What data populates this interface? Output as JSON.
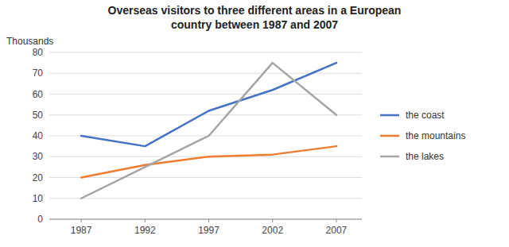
{
  "chart_data": {
    "type": "line",
    "title": "Overseas visitors to three different areas in a European\ncountry between 1987 and 2007",
    "ylabel": "Thousands",
    "x": [
      1987,
      1992,
      1997,
      2002,
      2007
    ],
    "series": [
      {
        "name": "the coast",
        "color": "#4472C4",
        "values": [
          40,
          35,
          52,
          62,
          75
        ]
      },
      {
        "name": "the mountains",
        "color": "#ED7D31",
        "values": [
          20,
          26,
          30,
          31,
          35
        ]
      },
      {
        "name": "the lakes",
        "color": "#A5A5A5",
        "values": [
          10,
          25,
          40,
          75,
          50
        ]
      }
    ],
    "xlim": [
      1984.5,
      2009
    ],
    "xticks": [
      1987,
      1992,
      1997,
      2002,
      2007
    ],
    "ylim": [
      0,
      80
    ],
    "yticks": [
      0,
      10,
      20,
      30,
      40,
      50,
      60,
      70,
      80
    ],
    "grid": true,
    "legend": "right"
  }
}
